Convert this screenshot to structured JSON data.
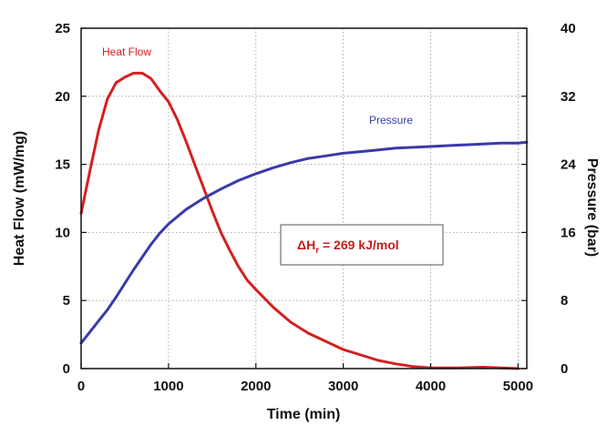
{
  "chart_data": {
    "type": "line",
    "xlabel": "Time (min)",
    "ylabel": "Heat Flow (mW/mg)",
    "y2label": "Pressure (bar)",
    "xlim": [
      0,
      5100
    ],
    "ylim": [
      0,
      25
    ],
    "y2lim": [
      0,
      40
    ],
    "x_ticks": [
      "0",
      "1000",
      "2000",
      "3000",
      "4000",
      "5000"
    ],
    "y_ticks": [
      "0",
      "5",
      "10",
      "15",
      "20",
      "25"
    ],
    "y2_ticks": [
      "0",
      "8",
      "16",
      "24",
      "32",
      "40"
    ],
    "grid": true,
    "series": [
      {
        "name": "Heat Flow",
        "axis": "left",
        "color": "#d42020",
        "x": [
          0,
          100,
          200,
          300,
          400,
          500,
          600,
          700,
          800,
          900,
          1000,
          1100,
          1200,
          1300,
          1400,
          1500,
          1600,
          1700,
          1800,
          1900,
          2000,
          2200,
          2400,
          2600,
          2800,
          3000,
          3200,
          3400,
          3600,
          3800,
          4000,
          4300,
          4600,
          5000
        ],
        "values": [
          11.4,
          14.5,
          17.5,
          19.8,
          21.0,
          21.4,
          21.7,
          21.7,
          21.3,
          20.4,
          19.6,
          18.3,
          16.7,
          15.0,
          13.3,
          11.6,
          10.0,
          8.7,
          7.5,
          6.5,
          5.8,
          4.5,
          3.4,
          2.6,
          2.0,
          1.4,
          1.0,
          0.6,
          0.35,
          0.15,
          0.05,
          0.05,
          0.1,
          0.0
        ]
      },
      {
        "name": "Pressure",
        "axis": "right",
        "color": "#3a3aa8",
        "x": [
          0,
          100,
          200,
          300,
          400,
          500,
          600,
          700,
          800,
          900,
          1000,
          1200,
          1400,
          1600,
          1800,
          2000,
          2200,
          2400,
          2600,
          2800,
          3000,
          3200,
          3400,
          3600,
          3800,
          4000,
          4200,
          4400,
          4600,
          4800,
          5000,
          5100
        ],
        "values": [
          3.0,
          4.3,
          5.6,
          6.9,
          8.4,
          10.0,
          11.6,
          13.1,
          14.6,
          15.9,
          17.0,
          18.7,
          20.0,
          21.1,
          22.1,
          22.9,
          23.6,
          24.2,
          24.7,
          25.0,
          25.3,
          25.5,
          25.7,
          25.9,
          26.0,
          26.1,
          26.2,
          26.3,
          26.4,
          26.5,
          26.5,
          26.6
        ]
      }
    ],
    "annotation": {
      "text_prefix": "ΔH",
      "text_sub": "r",
      "text_rest": " =  269 kJ/mol",
      "color": "#c41e1e"
    }
  }
}
